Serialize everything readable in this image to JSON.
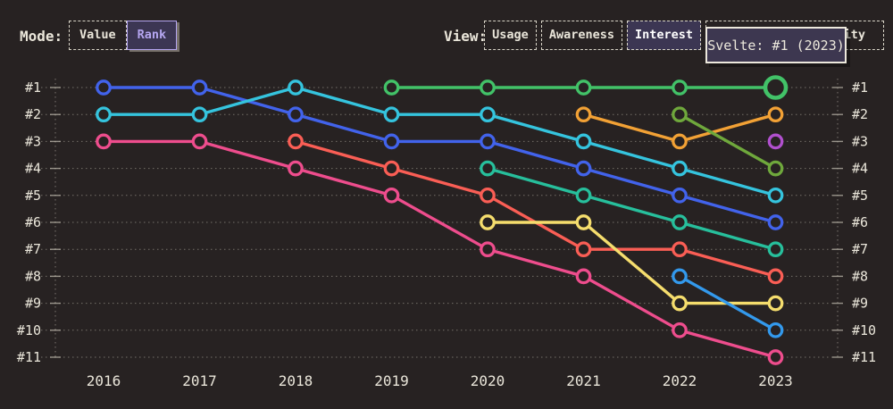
{
  "header": {
    "mode": {
      "label": "Mode:",
      "options": [
        {
          "label": "Value",
          "selected": false
        },
        {
          "label": "Rank",
          "selected": true
        }
      ]
    },
    "view": {
      "label": "View:",
      "options": [
        {
          "label": "Usage",
          "selected": false
        },
        {
          "label": "Awareness",
          "selected": false
        },
        {
          "label": "Interest",
          "selected": true
        },
        {
          "label": "Positivity",
          "selected": false
        }
      ]
    }
  },
  "tooltip": {
    "text": "Svelte: #1 (2023)"
  },
  "colors": {
    "background": "#272222",
    "text": "#eae6da",
    "grid": "#b5b0a4",
    "selected_bg": "#3c3653",
    "selected_purple": "#b5a6f0",
    "tooltip_bg": "#3d3750",
    "tooltip_border": "#ece8dc"
  },
  "chart_data": {
    "type": "line",
    "subtype": "bump-rank",
    "title": "",
    "xlabel": "",
    "ylabel": "",
    "x": [
      2016,
      2017,
      2018,
      2019,
      2020,
      2021,
      2022,
      2023
    ],
    "y_ranks": [
      1,
      2,
      3,
      4,
      5,
      6,
      7,
      8,
      9,
      10,
      11
    ],
    "rank_label_prefix": "#",
    "grid": "dotted",
    "series": [
      {
        "name": "pink",
        "color": "#ee4d8d",
        "ranks": [
          3,
          3,
          4,
          5,
          7,
          8,
          10,
          11
        ]
      },
      {
        "name": "coral",
        "color": "#fa5e55",
        "ranks": [
          null,
          null,
          3,
          4,
          5,
          7,
          7,
          8
        ]
      },
      {
        "name": "indigo",
        "color": "#4263eb",
        "ranks": [
          1,
          1,
          2,
          3,
          3,
          4,
          5,
          6
        ]
      },
      {
        "name": "cyan",
        "color": "#35c4de",
        "ranks": [
          2,
          2,
          1,
          2,
          2,
          3,
          4,
          5
        ]
      },
      {
        "name": "teal",
        "color": "#27bf9c",
        "ranks": [
          null,
          null,
          null,
          null,
          4,
          5,
          6,
          7
        ]
      },
      {
        "name": "yellow",
        "color": "#f5dd6d",
        "ranks": [
          null,
          null,
          null,
          null,
          6,
          6,
          9,
          9
        ]
      },
      {
        "name": "sky",
        "color": "#3399ec",
        "ranks": [
          null,
          null,
          null,
          null,
          null,
          null,
          8,
          10
        ]
      },
      {
        "name": "orange",
        "color": "#f2a135",
        "ranks": [
          null,
          null,
          null,
          null,
          null,
          2,
          3,
          2
        ]
      },
      {
        "name": "lime",
        "color": "#6fa83c",
        "ranks": [
          null,
          null,
          null,
          null,
          null,
          null,
          2,
          4
        ]
      },
      {
        "name": "purple",
        "color": "#b150ce",
        "ranks": [
          null,
          null,
          null,
          null,
          null,
          null,
          null,
          3
        ]
      },
      {
        "name": "svelte",
        "color": "#42c268",
        "ranks": [
          null,
          null,
          null,
          1,
          1,
          1,
          1,
          1
        ],
        "highlight_last": true
      }
    ],
    "highlight": {
      "series": "svelte",
      "year": 2023,
      "rank": 1
    }
  }
}
